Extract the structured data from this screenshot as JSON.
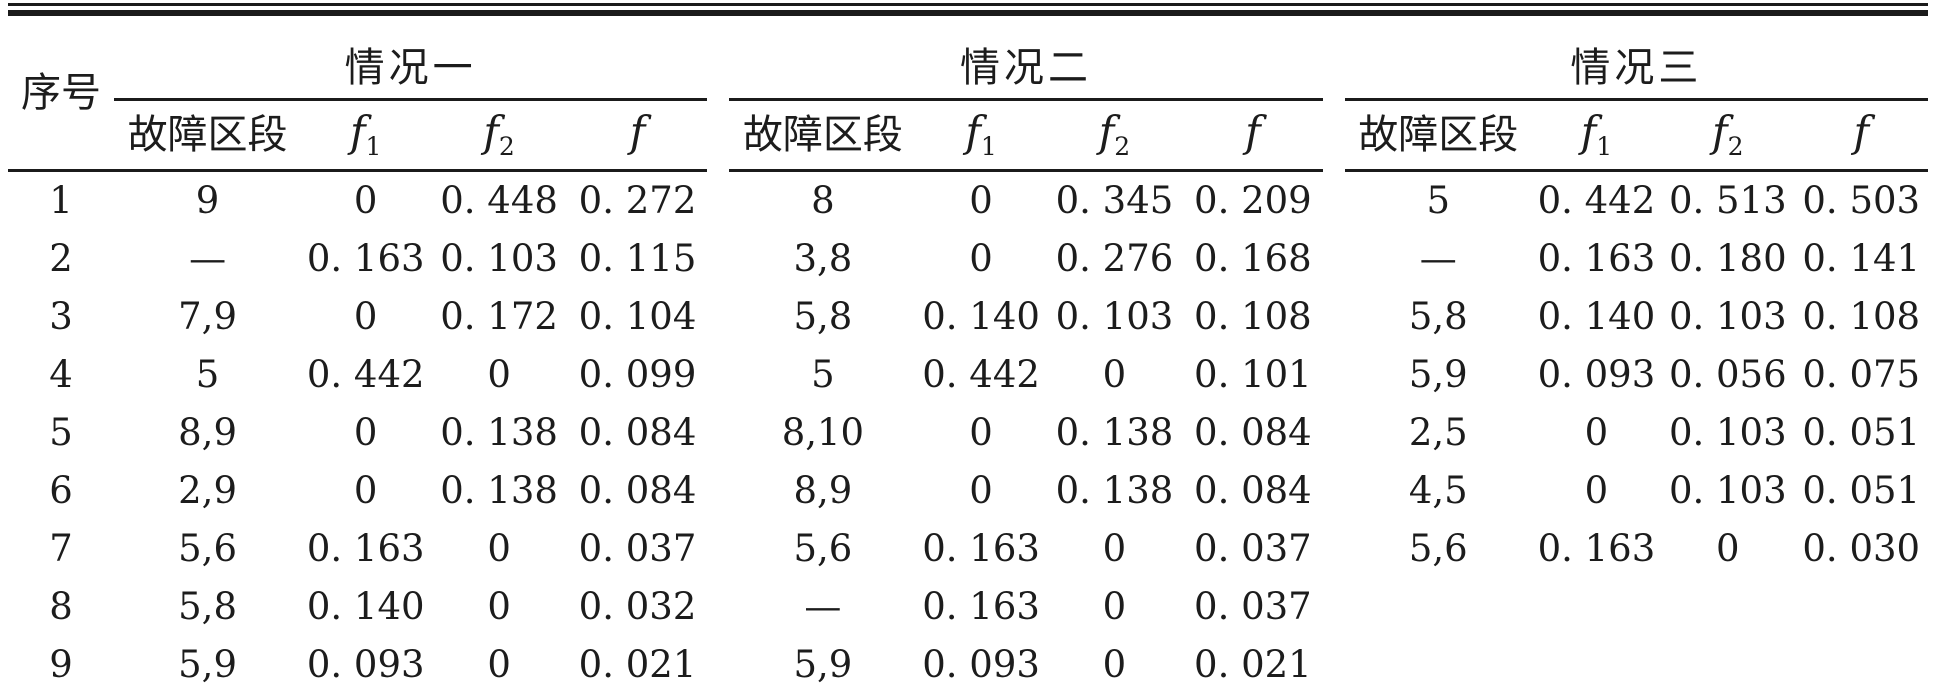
{
  "table": {
    "seq_header": "序号",
    "groups": [
      {
        "label": "情况一"
      },
      {
        "label": "情况二"
      },
      {
        "label": "情况三"
      }
    ],
    "sub_columns": [
      {
        "label": "故障区段",
        "sub": ""
      },
      {
        "label": "f",
        "sub": "1"
      },
      {
        "label": "f",
        "sub": "2"
      },
      {
        "label": "f",
        "sub": ""
      }
    ],
    "rows": [
      [
        "1",
        "9",
        "0",
        "0. 448",
        "0. 272",
        "8",
        "0",
        "0. 345",
        "0. 209",
        "5",
        "0. 442",
        "0. 513",
        "0. 503"
      ],
      [
        "2",
        "—",
        "0. 163",
        "0. 103",
        "0. 115",
        "3,8",
        "0",
        "0. 276",
        "0. 168",
        "—",
        "0. 163",
        "0. 180",
        "0. 141"
      ],
      [
        "3",
        "7,9",
        "0",
        "0. 172",
        "0. 104",
        "5,8",
        "0. 140",
        "0. 103",
        "0. 108",
        "5,8",
        "0. 140",
        "0. 103",
        "0. 108"
      ],
      [
        "4",
        "5",
        "0. 442",
        "0",
        "0. 099",
        "5",
        "0. 442",
        "0",
        "0. 101",
        "5,9",
        "0. 093",
        "0. 056",
        "0. 075"
      ],
      [
        "5",
        "8,9",
        "0",
        "0. 138",
        "0. 084",
        "8,10",
        "0",
        "0. 138",
        "0. 084",
        "2,5",
        "0",
        "0. 103",
        "0. 051"
      ],
      [
        "6",
        "2,9",
        "0",
        "0. 138",
        "0. 084",
        "8,9",
        "0",
        "0. 138",
        "0. 084",
        "4,5",
        "0",
        "0. 103",
        "0. 051"
      ],
      [
        "7",
        "5,6",
        "0. 163",
        "0",
        "0. 037",
        "5,6",
        "0. 163",
        "0",
        "0. 037",
        "5,6",
        "0. 163",
        "0",
        "0. 030"
      ],
      [
        "8",
        "5,8",
        "0. 140",
        "0",
        "0. 032",
        "—",
        "0. 163",
        "0",
        "0. 037",
        "",
        "",
        "",
        ""
      ],
      [
        "9",
        "5,9",
        "0. 093",
        "0",
        "0. 021",
        "5,9",
        "0. 093",
        "0",
        "0. 021",
        "",
        "",
        "",
        ""
      ]
    ],
    "text_color": "#1c1c1c",
    "rule_color": "#1b1b1b"
  }
}
